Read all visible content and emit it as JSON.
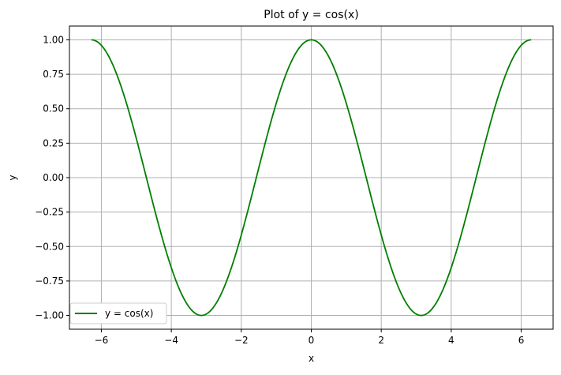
{
  "chart_data": {
    "type": "line",
    "title": "Plot of y = cos(x)",
    "xlabel": "x",
    "ylabel": "y",
    "xlim": [
      -6.912,
      6.912
    ],
    "ylim": [
      -1.1,
      1.1
    ],
    "grid": true,
    "legend_location": "lower-left",
    "x_ticks": [
      -6,
      -4,
      -2,
      0,
      2,
      4,
      6
    ],
    "x_tick_labels": [
      "−6",
      "−4",
      "−2",
      "0",
      "2",
      "4",
      "6"
    ],
    "y_ticks": [
      -1.0,
      -0.75,
      -0.5,
      -0.25,
      0.0,
      0.25,
      0.5,
      0.75,
      1.0
    ],
    "y_tick_labels": [
      "−1.00",
      "−0.75",
      "−0.50",
      "−0.25",
      "0.00",
      "0.25",
      "0.50",
      "0.75",
      "1.00"
    ],
    "series": [
      {
        "name": "y = cos(x)",
        "color": "#007f00",
        "x": [
          -6.283,
          -5.655,
          -5.027,
          -4.398,
          -3.77,
          -3.142,
          -2.513,
          -1.885,
          -1.257,
          -0.628,
          0.0,
          0.628,
          1.257,
          1.885,
          2.513,
          3.142,
          3.77,
          4.398,
          5.027,
          5.655,
          6.283
        ],
        "y": [
          1.0,
          0.809,
          0.309,
          -0.309,
          -0.809,
          -1.0,
          -0.809,
          -0.309,
          0.309,
          0.809,
          1.0,
          0.809,
          0.309,
          -0.309,
          -0.809,
          -1.0,
          -0.809,
          -0.309,
          0.309,
          0.809,
          1.0
        ]
      }
    ]
  }
}
